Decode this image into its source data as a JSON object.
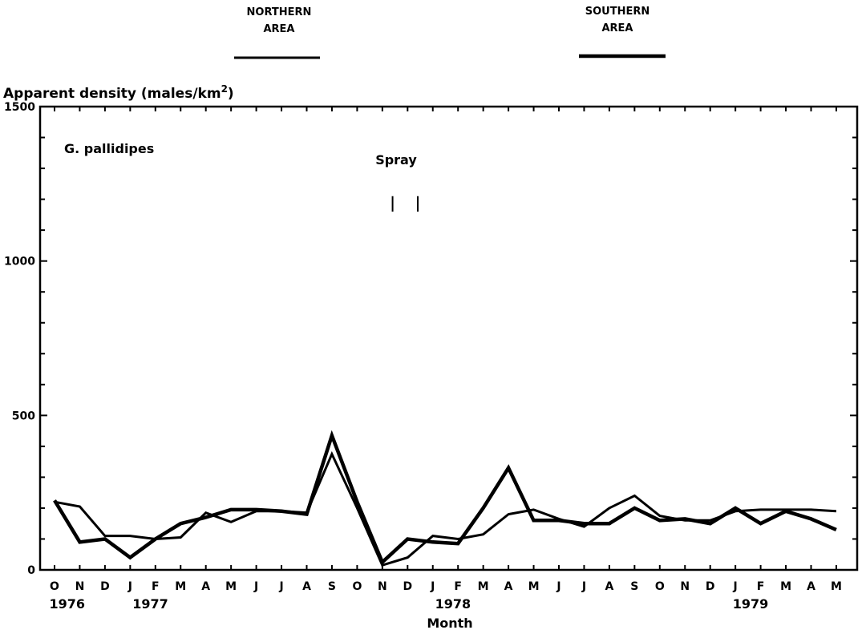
{
  "chart_data": {
    "type": "line",
    "ylabel": "Apparent density (males/km",
    "ylabel_sup": "2",
    "ylabel_close": ")",
    "xlabel": "Month",
    "ylim": [
      0,
      1500
    ],
    "yticks": [
      0,
      500,
      1000,
      1500
    ],
    "annotation": "G. pallidipes",
    "spray_label": "Spray",
    "spray_markers_x": [
      13.5,
      14.5
    ],
    "legend": [
      {
        "label_line1": "NORTHERN",
        "label_line2": "AREA",
        "style": "thin"
      },
      {
        "label_line1": "SOUTHERN",
        "label_line2": "AREA",
        "style": "thick"
      }
    ],
    "months": [
      "O",
      "N",
      "D",
      "J",
      "F",
      "M",
      "A",
      "M",
      "J",
      "J",
      "A",
      "S",
      "O",
      "N",
      "D",
      "J",
      "F",
      "M",
      "A",
      "M",
      "J",
      "J",
      "A",
      "S",
      "O",
      "N",
      "D",
      "J",
      "F",
      "M",
      "A",
      "M"
    ],
    "year_labels": [
      {
        "label": "1976",
        "at": 0.5
      },
      {
        "label": "1977",
        "at": 3.8
      },
      {
        "label": "1978",
        "at": 15.8
      },
      {
        "label": "1979",
        "at": 27.6
      }
    ],
    "series": [
      {
        "name": "NORTHERN AREA",
        "style": "thin",
        "values": [
          220,
          205,
          110,
          110,
          100,
          105,
          185,
          155,
          190,
          190,
          185,
          375,
          200,
          15,
          40,
          110,
          100,
          115,
          180,
          195,
          165,
          140,
          200,
          240,
          175,
          160,
          160,
          190,
          195,
          195,
          195,
          190
        ]
      },
      {
        "name": "SOUTHERN AREA",
        "style": "thick",
        "values": [
          225,
          90,
          100,
          40,
          100,
          150,
          170,
          195,
          195,
          190,
          180,
          435,
          220,
          25,
          100,
          90,
          85,
          200,
          330,
          160,
          160,
          150,
          150,
          200,
          160,
          165,
          150,
          200,
          150,
          190,
          165,
          130
        ]
      }
    ]
  }
}
